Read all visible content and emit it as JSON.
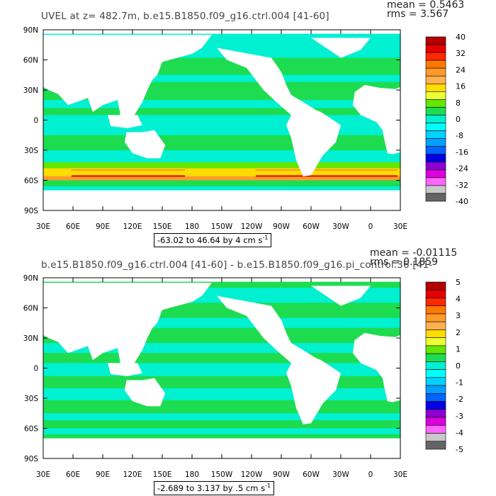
{
  "panels": [
    {
      "title": "UVEL at z= 482.7m, b.e15.B1850.f09_g16.ctrl.004 [41-60]",
      "stats": {
        "mean": "mean = 0.5463",
        "rms": "rms = 3.567"
      },
      "range": "-63.02 to 46.64 by 4 cm s",
      "range_sup": "-1",
      "colorbar_labels": [
        "40",
        "32",
        "24",
        "16",
        "8",
        "0",
        "-8",
        "-16",
        "-24",
        "-32",
        "-40"
      ]
    },
    {
      "title": "b.e15.B1850.f09_g16.ctrl.004 [41-60] - b.e15.B1850.f09_g16.pi_control.36 [41-",
      "stats": {
        "mean": "mean = -0.01115",
        "rms": "rms = 0.1859"
      },
      "range": "-2.689 to 3.137 by .5 cm s",
      "range_sup": "-1",
      "colorbar_labels": [
        "5",
        "4",
        "3",
        "2",
        "1",
        "0",
        "-1",
        "-2",
        "-3",
        "-4",
        "-5"
      ]
    }
  ],
  "lat_labels": [
    "90N",
    "60N",
    "30N",
    "0",
    "30S",
    "60S",
    "90S"
  ],
  "lon_labels": [
    "30E",
    "60E",
    "90E",
    "120E",
    "150E",
    "180",
    "150W",
    "120W",
    "90W",
    "60W",
    "30W",
    "0",
    "30E"
  ],
  "colorbar_colors": [
    "#b40000",
    "#e60000",
    "#ff2800",
    "#ff7800",
    "#ff9a28",
    "#ffb050",
    "#ffdc00",
    "#f0ff32",
    "#64e600",
    "#1edc50",
    "#00f0d2",
    "#00ffff",
    "#00d2ff",
    "#00a0ff",
    "#0064ff",
    "#0000e6",
    "#8c00d2",
    "#dc00dc",
    "#ff64ff",
    "#c8c8c8",
    "#646464"
  ],
  "map_colors": {
    "land": "#ffffff",
    "weak": "#00f0d2",
    "mid": "#1edc50",
    "pos1": "#64e600",
    "pos2": "#ffdc00",
    "pos3": "#ff9a28",
    "strong": "#e60000",
    "neg": "#00a0ff",
    "neg2": "#0000e6"
  }
}
